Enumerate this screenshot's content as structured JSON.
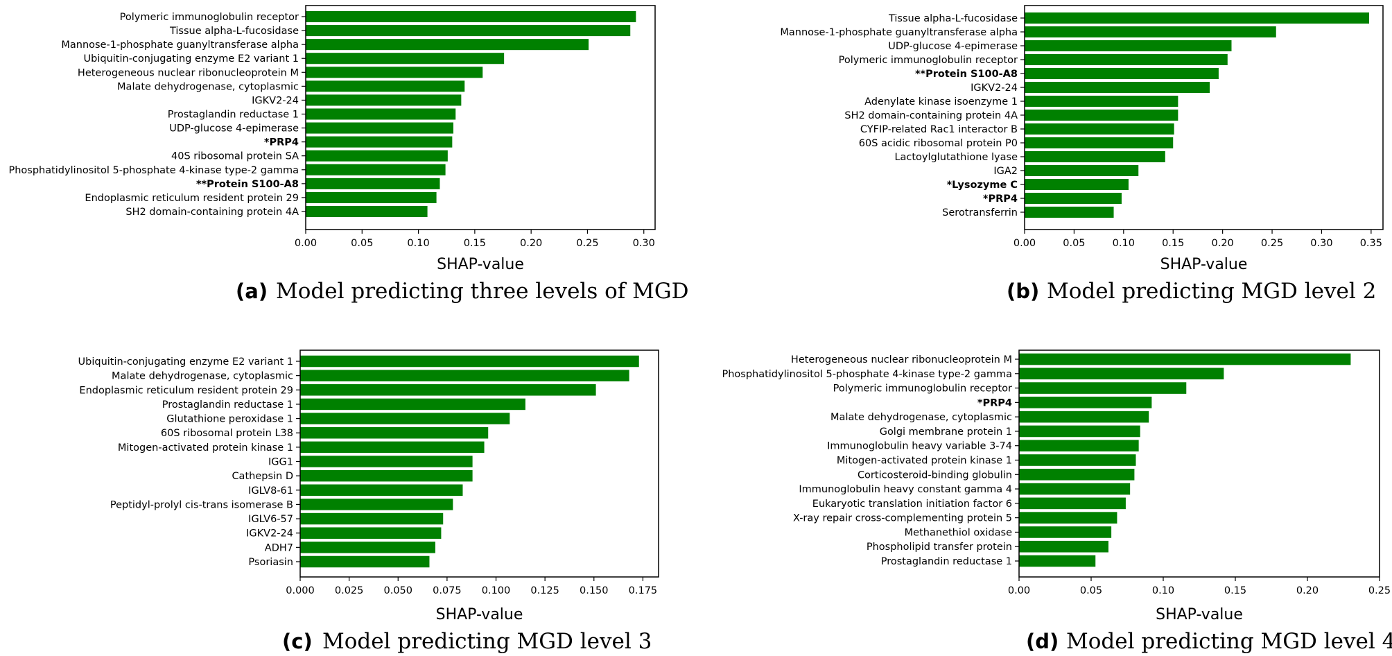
{
  "colors": {
    "bar": "#008000",
    "normal_label": "#000000",
    "green_label": "#008000",
    "red_label": "#ff0000"
  },
  "chart_data": [
    {
      "type": "bar",
      "orientation": "horizontal",
      "panel_letter": "(a)",
      "caption": "Model predicting three levels of MGD",
      "xlabel": "SHAP-value",
      "xlim": [
        0,
        0.31
      ],
      "xticks": [
        0.0,
        0.05,
        0.1,
        0.15,
        0.2,
        0.25,
        0.3
      ],
      "xtick_labels": [
        "0.00",
        "0.05",
        "0.10",
        "0.15",
        "0.20",
        "0.25",
        "0.30"
      ],
      "categories": [
        "Polymeric immunoglobulin receptor",
        "Tissue alpha-L-fucosidase",
        "Mannose-1-phosphate guanyltransferase alpha",
        "Ubiquitin-conjugating enzyme E2 variant 1",
        "Heterogeneous nuclear ribonucleoprotein M",
        "Malate dehydrogenase, cytoplasmic",
        "IGKV2-24",
        "Prostaglandin reductase 1",
        "UDP-glucose 4-epimerase",
        "*PRP4",
        "40S ribosomal protein SA",
        "Phosphatidylinositol 5-phosphate 4-kinase type-2 gamma",
        "**Protein S100-A8",
        "Endoplasmic reticulum resident protein 29",
        "SH2 domain-containing protein 4A"
      ],
      "label_styles": [
        "normal",
        "normal",
        "normal",
        "normal",
        "normal",
        "normal",
        "normal",
        "normal",
        "normal",
        "green",
        "normal",
        "normal",
        "red",
        "normal",
        "normal"
      ],
      "values": [
        0.293,
        0.288,
        0.251,
        0.176,
        0.157,
        0.141,
        0.138,
        0.133,
        0.131,
        0.13,
        0.126,
        0.124,
        0.119,
        0.116,
        0.108
      ]
    },
    {
      "type": "bar",
      "orientation": "horizontal",
      "panel_letter": "(b)",
      "caption": "Model predicting MGD level 2",
      "xlabel": "SHAP-value",
      "xlim": [
        0,
        0.362
      ],
      "xticks": [
        0.0,
        0.05,
        0.1,
        0.15,
        0.2,
        0.25,
        0.3,
        0.35
      ],
      "xtick_labels": [
        "0.00",
        "0.05",
        "0.10",
        "0.15",
        "0.20",
        "0.25",
        "0.30",
        "0.35"
      ],
      "categories": [
        "Tissue alpha-L-fucosidase",
        "Mannose-1-phosphate guanyltransferase alpha",
        "UDP-glucose 4-epimerase",
        "Polymeric immunoglobulin receptor",
        "**Protein S100-A8",
        "IGKV2-24",
        "Adenylate kinase isoenzyme 1",
        "SH2 domain-containing protein 4A",
        "CYFIP-related Rac1 interactor B",
        "60S acidic ribosomal protein P0",
        "Lactoylglutathione lyase",
        "IGA2",
        "*Lysozyme C",
        "*PRP4",
        "Serotransferrin"
      ],
      "label_styles": [
        "normal",
        "normal",
        "normal",
        "normal",
        "red",
        "normal",
        "normal",
        "normal",
        "normal",
        "normal",
        "normal",
        "normal",
        "green",
        "green",
        "normal"
      ],
      "values": [
        0.348,
        0.254,
        0.209,
        0.205,
        0.196,
        0.187,
        0.155,
        0.155,
        0.151,
        0.15,
        0.142,
        0.115,
        0.105,
        0.098,
        0.09
      ]
    },
    {
      "type": "bar",
      "orientation": "horizontal",
      "panel_letter": "(c)",
      "caption": "Model predicting MGD level 3",
      "xlabel": "SHAP-value",
      "xlim": [
        0,
        0.183
      ],
      "xticks": [
        0.0,
        0.025,
        0.05,
        0.075,
        0.1,
        0.125,
        0.15,
        0.175
      ],
      "xtick_labels": [
        "0.000",
        "0.025",
        "0.050",
        "0.075",
        "0.100",
        "0.125",
        "0.150",
        "0.175"
      ],
      "categories": [
        "Ubiquitin-conjugating enzyme E2 variant 1",
        "Malate dehydrogenase, cytoplasmic",
        "Endoplasmic reticulum resident protein 29",
        "Prostaglandin reductase 1",
        "Glutathione peroxidase 1",
        "60S ribosomal protein L38",
        "Mitogen-activated protein kinase 1",
        "IGG1",
        "Cathepsin D",
        "IGLV8-61",
        "Peptidyl-prolyl cis-trans isomerase B",
        "IGLV6-57",
        "IGKV2-24",
        "ADH7",
        "Psoriasin"
      ],
      "label_styles": [
        "normal",
        "normal",
        "normal",
        "normal",
        "normal",
        "normal",
        "normal",
        "normal",
        "normal",
        "normal",
        "normal",
        "normal",
        "normal",
        "normal",
        "normal"
      ],
      "values": [
        0.173,
        0.168,
        0.151,
        0.115,
        0.107,
        0.096,
        0.094,
        0.088,
        0.088,
        0.083,
        0.078,
        0.073,
        0.072,
        0.069,
        0.066
      ]
    },
    {
      "type": "bar",
      "orientation": "horizontal",
      "panel_letter": "(d)",
      "caption": "Model predicting MGD level 4",
      "xlabel": "SHAP-value",
      "xlim": [
        0,
        0.25
      ],
      "xticks": [
        0.0,
        0.05,
        0.1,
        0.15,
        0.2,
        0.25
      ],
      "xtick_labels": [
        "0.00",
        "0.05",
        "0.10",
        "0.15",
        "0.20",
        "0.25"
      ],
      "categories": [
        "Heterogeneous nuclear ribonucleoprotein M",
        "Phosphatidylinositol 5-phosphate 4-kinase type-2 gamma",
        "Polymeric immunoglobulin receptor",
        "*PRP4",
        "Malate dehydrogenase, cytoplasmic",
        "Golgi membrane protein 1",
        "Immunoglobulin heavy variable 3-74",
        "Mitogen-activated protein kinase 1",
        "Corticosteroid-binding globulin",
        "Immunoglobulin heavy constant gamma 4",
        "Eukaryotic translation initiation factor 6",
        "X-ray repair cross-complementing protein 5",
        "Methanethiol oxidase",
        "Phospholipid transfer protein",
        "Prostaglandin reductase 1"
      ],
      "label_styles": [
        "normal",
        "normal",
        "normal",
        "green",
        "normal",
        "normal",
        "normal",
        "normal",
        "normal",
        "normal",
        "normal",
        "normal",
        "normal",
        "normal",
        "normal"
      ],
      "values": [
        0.23,
        0.142,
        0.116,
        0.092,
        0.09,
        0.084,
        0.083,
        0.081,
        0.08,
        0.077,
        0.074,
        0.068,
        0.064,
        0.062,
        0.053
      ]
    }
  ]
}
